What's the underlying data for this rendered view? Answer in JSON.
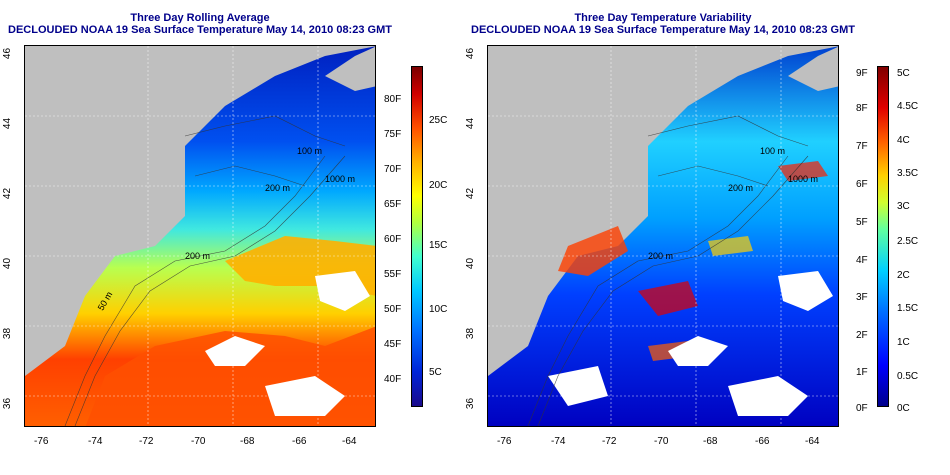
{
  "left_panel": {
    "title_line1": "Three Day Rolling Average",
    "title_line2": "DECLOUDED NOAA 19 Sea Surface Temperature May 14, 2010 08:23 GMT",
    "colorbar_f": [
      "80F",
      "75F",
      "70F",
      "65F",
      "60F",
      "55F",
      "50F",
      "45F",
      "40F"
    ],
    "colorbar_c": [
      "25C",
      "20C",
      "15C",
      "10C",
      "5C"
    ],
    "contour_labels": [
      "100 m",
      "200 m",
      "1000 m",
      "200 m",
      "50 m"
    ]
  },
  "right_panel": {
    "title_line1": "Three Day Temperature Variability",
    "title_line2": "DECLOUDED NOAA 19 Sea Surface Temperature May 14, 2010 08:23 GMT",
    "colorbar_f": [
      "9F",
      "8F",
      "7F",
      "6F",
      "5F",
      "4F",
      "3F",
      "2F",
      "1F",
      "0F"
    ],
    "colorbar_c": [
      "5C",
      "4.5C",
      "4C",
      "3.5C",
      "3C",
      "2.5C",
      "2C",
      "1.5C",
      "1C",
      "0.5C",
      "0C"
    ],
    "contour_labels": [
      "100 m",
      "200 m",
      "1000 m",
      "200 m"
    ]
  },
  "axes": {
    "x_ticks": [
      "-76",
      "-74",
      "-72",
      "-70",
      "-68",
      "-66",
      "-64"
    ],
    "y_ticks": [
      "46",
      "44",
      "42",
      "40",
      "38",
      "36"
    ]
  },
  "colors": {
    "title": "#00008b",
    "land": "#bfbfbf",
    "sst_scale": [
      "#1a0a8c",
      "#0024d8",
      "#0070ff",
      "#00c8ff",
      "#40ffd0",
      "#b0ff40",
      "#ffff00",
      "#ffb000",
      "#ff5000",
      "#d00000",
      "#7a0000"
    ],
    "variability_scale": [
      "#00008b",
      "#0000ff",
      "#0070ff",
      "#00d0ff",
      "#60ffa0",
      "#d0ff30",
      "#ffd000",
      "#ff6000",
      "#e00000",
      "#800000"
    ]
  }
}
